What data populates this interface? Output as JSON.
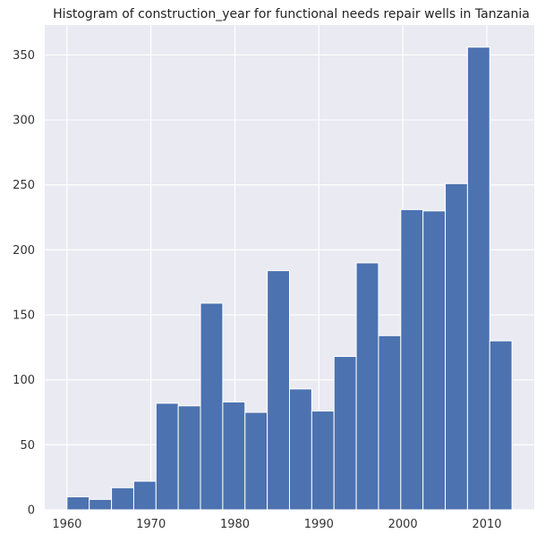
{
  "chart_data": {
    "type": "bar",
    "title": "Histogram of construction_year for functional needs repair wells in Tanzania",
    "xlabel": "",
    "ylabel": "",
    "xlim": [
      1957.35,
      2015.65
    ],
    "ylim": [
      0,
      373
    ],
    "xticks": [
      1960,
      1970,
      1980,
      1990,
      2000,
      2010
    ],
    "yticks": [
      0,
      50,
      100,
      150,
      200,
      250,
      300,
      350
    ],
    "bin_edges": [
      1960,
      1962.65,
      1965.3,
      1967.95,
      1970.6,
      1973.25,
      1975.9,
      1978.55,
      1981.2,
      1983.85,
      1986.5,
      1989.15,
      1991.8,
      1994.45,
      1997.1,
      1999.75,
      2002.4,
      2005.05,
      2007.7,
      2010.35,
      2013
    ],
    "values": [
      10,
      8,
      17,
      22,
      82,
      80,
      159,
      83,
      75,
      184,
      93,
      76,
      118,
      190,
      134,
      231,
      230,
      251,
      356,
      130
    ],
    "grid": true,
    "colors": {
      "bar": "#4c72b0",
      "background": "#eaeaf2",
      "grid": "#ffffff"
    }
  }
}
